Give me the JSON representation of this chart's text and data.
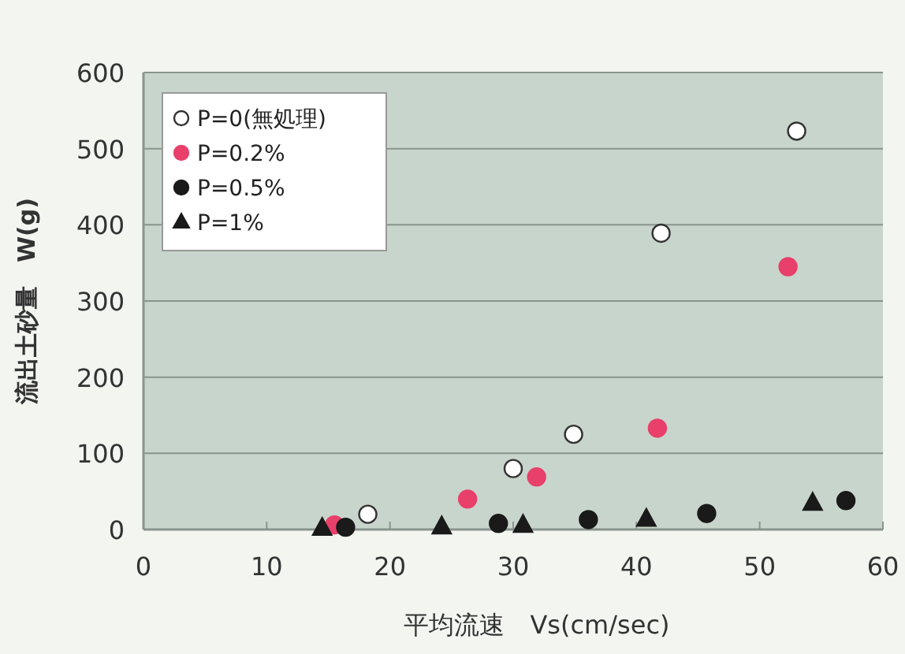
{
  "chart_data": {
    "type": "scatter",
    "xlabel": "平均流速　Vs(cm/sec)",
    "ylabel": "流出土砂量　W(g)",
    "xlim": [
      0,
      60
    ],
    "xticks": [
      0,
      10,
      20,
      30,
      40,
      50,
      60
    ],
    "ylim": [
      0,
      600
    ],
    "yticks": [
      0,
      100,
      200,
      300,
      400,
      500,
      600
    ],
    "grid": "y",
    "legend": "top left",
    "series": [
      {
        "name": "P=0(無処理)",
        "color": "#ffffff",
        "marker": "circle",
        "x": [
          18.2,
          30.0,
          34.9,
          42.0,
          53.0
        ],
        "values": [
          20,
          80,
          125,
          389,
          523
        ]
      },
      {
        "name": "P=0.2%",
        "color": "#e8406a",
        "marker": "circle",
        "x": [
          15.5,
          26.3,
          31.9,
          41.7,
          52.3
        ],
        "values": [
          6,
          40,
          69,
          133,
          345
        ]
      },
      {
        "name": "P=0.5%",
        "color": "#1a1a1a",
        "marker": "circle",
        "x": [
          16.4,
          28.8,
          36.1,
          45.7,
          57.0
        ],
        "values": [
          3,
          8,
          13,
          21,
          38
        ]
      },
      {
        "name": "P=1%",
        "color": "#1a1a1a",
        "marker": "triangle",
        "x": [
          14.5,
          24.2,
          30.8,
          40.8,
          54.3
        ],
        "values": [
          2,
          4,
          6,
          14,
          35
        ]
      }
    ]
  }
}
